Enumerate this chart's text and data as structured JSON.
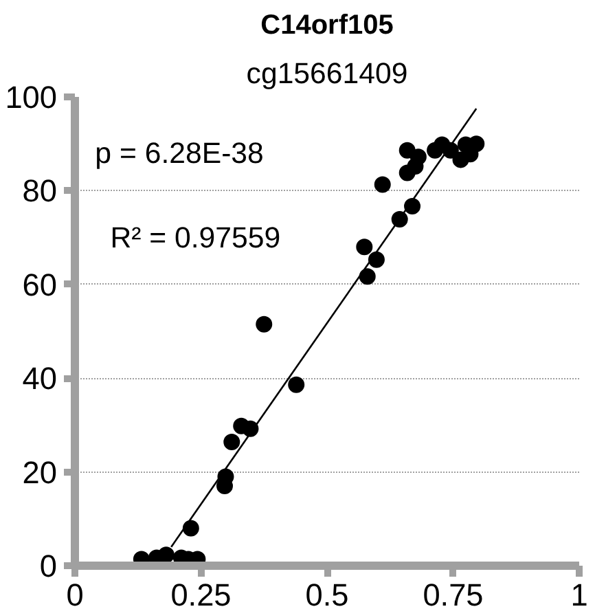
{
  "chart_data": {
    "type": "scatter",
    "title": "C14orf105",
    "subtitle": "cg15661409",
    "annotations": [
      "p = 6.28E-38",
      "R² = 0.97559"
    ],
    "series": [
      {
        "color": "#000000",
        "marker": "circle",
        "x": [
          0.132,
          0.162,
          0.181,
          0.211,
          0.225,
          0.243,
          0.23,
          0.297,
          0.299,
          0.311,
          0.33,
          0.348,
          0.375,
          0.439,
          0.58,
          0.574,
          0.598,
          0.61,
          0.644,
          0.669,
          0.659,
          0.659,
          0.681,
          0.675,
          0.714,
          0.728,
          0.745,
          0.765,
          0.775,
          0.796,
          0.784
        ],
        "values": [
          1.4,
          1.7,
          2.3,
          1.7,
          1.4,
          1.4,
          8,
          17,
          19,
          26.4,
          29.8,
          29.2,
          51.5,
          38.6,
          61.7,
          68,
          65.3,
          81.3,
          73.9,
          76.7,
          83.8,
          88.6,
          87.2,
          85.2,
          88.6,
          89.8,
          88.6,
          86.6,
          89.8,
          90,
          87.8
        ]
      },
      {
        "type": "line",
        "color": "#000000",
        "line_style": "solid",
        "x": [
          0.191,
          0.796
        ],
        "values": [
          4,
          97.5
        ]
      }
    ],
    "xlim": [
      0,
      1
    ],
    "ylim": [
      0,
      100
    ],
    "xticks": [
      0,
      0.25,
      0.5,
      0.75,
      1
    ],
    "yticks": [
      0,
      20,
      40,
      60,
      80,
      100
    ],
    "grid": "y"
  }
}
